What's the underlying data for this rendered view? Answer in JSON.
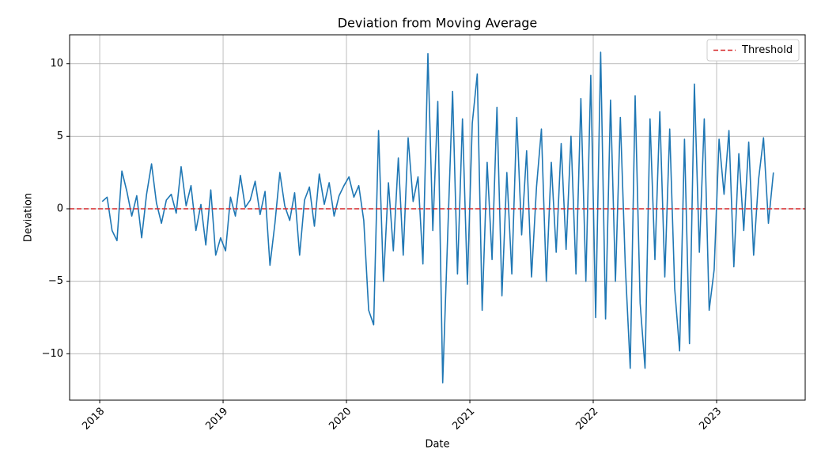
{
  "chart_data": {
    "type": "line",
    "title": "Deviation from Moving Average",
    "xlabel": "Date",
    "ylabel": "Deviation",
    "x": [
      2018.02,
      2018.06,
      2018.1,
      2018.14,
      2018.18,
      2018.22,
      2018.26,
      2018.3,
      2018.34,
      2018.38,
      2018.42,
      2018.46,
      2018.5,
      2018.54,
      2018.58,
      2018.62,
      2018.66,
      2018.7,
      2018.74,
      2018.78,
      2018.82,
      2018.86,
      2018.9,
      2018.94,
      2018.98,
      2019.02,
      2019.06,
      2019.1,
      2019.14,
      2019.18,
      2019.22,
      2019.26,
      2019.3,
      2019.34,
      2019.38,
      2019.42,
      2019.46,
      2019.5,
      2019.54,
      2019.58,
      2019.62,
      2019.66,
      2019.7,
      2019.74,
      2019.78,
      2019.82,
      2019.86,
      2019.9,
      2019.94,
      2019.98,
      2020.02,
      2020.06,
      2020.1,
      2020.14,
      2020.18,
      2020.22,
      2020.26,
      2020.3,
      2020.34,
      2020.38,
      2020.42,
      2020.46,
      2020.5,
      2020.54,
      2020.58,
      2020.62,
      2020.66,
      2020.7,
      2020.74,
      2020.78,
      2020.82,
      2020.86,
      2020.9,
      2020.94,
      2020.98,
      2021.02,
      2021.06,
      2021.1,
      2021.14,
      2021.18,
      2021.22,
      2021.26,
      2021.3,
      2021.34,
      2021.38,
      2021.42,
      2021.46,
      2021.5,
      2021.54,
      2021.58,
      2021.62,
      2021.66,
      2021.7,
      2021.74,
      2021.78,
      2021.82,
      2021.86,
      2021.9,
      2021.94,
      2021.98,
      2022.02,
      2022.06,
      2022.1,
      2022.14,
      2022.18,
      2022.22,
      2022.26,
      2022.3,
      2022.34,
      2022.38,
      2022.42,
      2022.46,
      2022.5,
      2022.54,
      2022.58,
      2022.62,
      2022.66,
      2022.7,
      2022.74,
      2022.78,
      2022.82,
      2022.86,
      2022.9,
      2022.94,
      2022.98,
      2023.02,
      2023.06,
      2023.1,
      2023.14,
      2023.18,
      2023.22,
      2023.26,
      2023.3,
      2023.34,
      2023.38,
      2023.42,
      2023.46
    ],
    "series": [
      {
        "color": "#1f77b4",
        "values": [
          0.5,
          0.8,
          -1.5,
          -2.2,
          2.6,
          1.2,
          -0.5,
          0.9,
          -2.0,
          1.0,
          3.1,
          0.4,
          -1.0,
          0.6,
          1.0,
          -0.3,
          2.9,
          0.2,
          1.6,
          -1.5,
          0.3,
          -2.5,
          1.3,
          -3.2,
          -2.0,
          -2.9,
          0.8,
          -0.5,
          2.3,
          0.1,
          0.6,
          1.9,
          -0.4,
          1.2,
          -3.9,
          -1.0,
          2.5,
          0.2,
          -0.8,
          1.1,
          -3.2,
          0.6,
          1.5,
          -1.2,
          2.4,
          0.3,
          1.8,
          -0.5,
          0.9,
          1.6,
          2.2,
          0.8,
          1.6,
          -0.8,
          -7.0,
          -8.0,
          5.4,
          -5.0,
          1.8,
          -2.9,
          3.5,
          -3.2,
          4.9,
          0.5,
          2.2,
          -3.8,
          10.7,
          -1.5,
          7.4,
          -12.0,
          -2.0,
          8.1,
          -4.5,
          6.2,
          -5.2,
          5.9,
          9.3,
          -7.0,
          3.2,
          -3.5,
          7.0,
          -6.0,
          2.5,
          -4.5,
          6.3,
          -1.8,
          4.0,
          -4.7,
          1.5,
          5.5,
          -5.0,
          3.2,
          -3.0,
          4.5,
          -2.8,
          5.0,
          -4.5,
          7.6,
          -5.0,
          9.2,
          -7.5,
          10.8,
          -7.6,
          7.5,
          -5.0,
          6.3,
          -4.0,
          -11.0,
          7.8,
          -6.5,
          -11.0,
          6.2,
          -3.5,
          6.7,
          -4.7,
          5.5,
          -5.5,
          -9.8,
          4.8,
          -9.3,
          8.6,
          -3.0,
          6.2,
          -7.0,
          -4.2,
          4.8,
          1.0,
          5.4,
          -4.0,
          3.8,
          -1.5,
          4.6,
          -3.2,
          2.0,
          4.9,
          -1.0,
          2.5
        ]
      }
    ],
    "threshold": {
      "name": "Threshold",
      "value": 0,
      "color": "#d62728"
    },
    "xlim": [
      2017.756,
      2023.718
    ],
    "xticks": [
      2018,
      2019,
      2020,
      2021,
      2022,
      2023
    ],
    "ylim": [
      -13.2,
      12.0
    ],
    "yticks": [
      {
        "value": -10,
        "label": "−10"
      },
      {
        "value": -5,
        "label": "−5"
      },
      0,
      5,
      10
    ],
    "grid": true,
    "legend": "upper right"
  }
}
